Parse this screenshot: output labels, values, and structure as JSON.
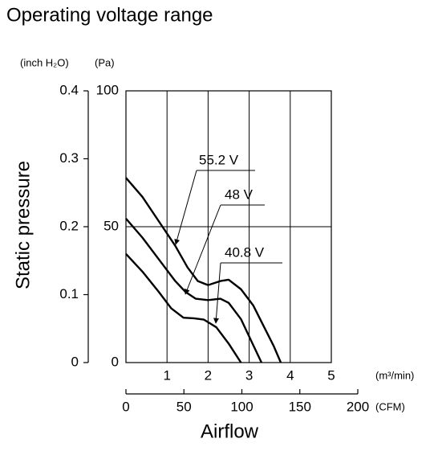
{
  "chart_data": {
    "type": "line",
    "title": "Operating voltage range",
    "x_label": "Airflow",
    "y_label": "Static pressure",
    "x_unit": "(m³/min)",
    "x2_unit": "(CFM)",
    "y_unit": "(Pa)",
    "y2_unit": "(inch H₂O)",
    "xlim": [
      0,
      5
    ],
    "xticks": [
      1,
      2,
      3,
      4,
      5
    ],
    "x2lim": [
      0,
      200
    ],
    "x2ticks": [
      0,
      50,
      100,
      150,
      200
    ],
    "ylim": [
      0,
      100
    ],
    "yticks": [
      0,
      50,
      100
    ],
    "y2lim": [
      0,
      0.4
    ],
    "y2ticks": [
      0,
      0.1,
      0.2,
      0.3,
      0.4
    ],
    "grid": true,
    "series": [
      {
        "name": "55.2 V",
        "color": "#000000",
        "x": [
          0,
          0.4,
          0.8,
          1.2,
          1.5,
          1.75,
          2.0,
          2.3,
          2.5,
          2.8,
          3.1,
          3.4,
          3.6,
          3.77
        ],
        "values": [
          68,
          61,
          52,
          43,
          35,
          30,
          28.5,
          30,
          30.5,
          27,
          21,
          12,
          6,
          0
        ]
      },
      {
        "name": "48 V",
        "color": "#000000",
        "x": [
          0,
          0.4,
          0.8,
          1.2,
          1.45,
          1.7,
          2.0,
          2.3,
          2.5,
          2.8,
          3.05,
          3.3
        ],
        "values": [
          53,
          46,
          38,
          30,
          26,
          23.5,
          23,
          23.5,
          22,
          16,
          8,
          0
        ]
      },
      {
        "name": "40.8 V",
        "color": "#000000",
        "x": [
          0,
          0.4,
          0.8,
          1.1,
          1.4,
          1.65,
          1.9,
          2.2,
          2.5,
          2.8
        ],
        "values": [
          40,
          33.5,
          26,
          20,
          16.5,
          16.3,
          15.8,
          13,
          7,
          0
        ]
      }
    ]
  }
}
